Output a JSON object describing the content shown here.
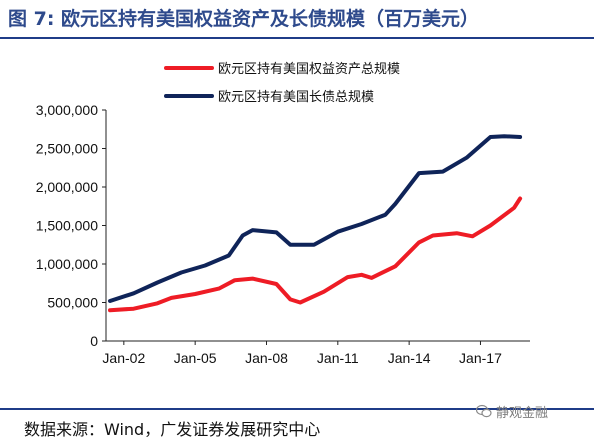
{
  "title": "图 7: 欧元区持有美国权益资产及长债规模（百万美元）",
  "source": "数据来源：Wind，广发证券发展研究中心",
  "watermark": "静观金融",
  "chart_data": {
    "type": "line",
    "title": "图 7: 欧元区持有美国权益资产及长债规模（百万美元）",
    "xlabel": "",
    "ylabel": "",
    "ylim": [
      0,
      3000000
    ],
    "yticks": [
      0,
      500000,
      1000000,
      1500000,
      2000000,
      2500000,
      3000000
    ],
    "ytick_labels": [
      "0",
      "500,000",
      "1,000,000",
      "1,500,000",
      "2,000,000",
      "2,500,000",
      "3,000,000"
    ],
    "xlim": [
      "2001-04",
      "2019-02"
    ],
    "xticks": [
      "2002-01",
      "2005-01",
      "2008-01",
      "2011-01",
      "2014-01",
      "2017-01"
    ],
    "xtick_labels": [
      "Jan-02",
      "Jan-05",
      "Jan-08",
      "Jan-11",
      "Jan-14",
      "Jan-17"
    ],
    "grid": false,
    "legend_position": "top-left",
    "series": [
      {
        "name": "欧元区持有美国权益资产总规模",
        "color": "#ee1c25",
        "points": [
          [
            "2001-06",
            400000
          ],
          [
            "2002-06",
            420000
          ],
          [
            "2003-06",
            490000
          ],
          [
            "2004-01",
            560000
          ],
          [
            "2005-01",
            610000
          ],
          [
            "2006-01",
            680000
          ],
          [
            "2006-09",
            790000
          ],
          [
            "2007-06",
            810000
          ],
          [
            "2008-06",
            740000
          ],
          [
            "2009-01",
            540000
          ],
          [
            "2009-06",
            500000
          ],
          [
            "2010-06",
            640000
          ],
          [
            "2011-06",
            830000
          ],
          [
            "2012-01",
            860000
          ],
          [
            "2012-06",
            820000
          ],
          [
            "2013-06",
            970000
          ],
          [
            "2014-06",
            1280000
          ],
          [
            "2015-01",
            1370000
          ],
          [
            "2016-01",
            1400000
          ],
          [
            "2016-09",
            1360000
          ],
          [
            "2017-06",
            1500000
          ],
          [
            "2018-06",
            1730000
          ],
          [
            "2018-09",
            1850000
          ]
        ]
      },
      {
        "name": "欧元区持有美国长债总规模",
        "color": "#0f2459",
        "points": [
          [
            "2001-06",
            520000
          ],
          [
            "2002-06",
            620000
          ],
          [
            "2003-06",
            760000
          ],
          [
            "2004-06",
            890000
          ],
          [
            "2005-06",
            980000
          ],
          [
            "2006-06",
            1110000
          ],
          [
            "2007-01",
            1370000
          ],
          [
            "2007-06",
            1440000
          ],
          [
            "2008-06",
            1410000
          ],
          [
            "2009-01",
            1250000
          ],
          [
            "2010-01",
            1250000
          ],
          [
            "2011-01",
            1420000
          ],
          [
            "2012-01",
            1520000
          ],
          [
            "2013-01",
            1640000
          ],
          [
            "2013-06",
            1780000
          ],
          [
            "2014-06",
            2180000
          ],
          [
            "2015-06",
            2200000
          ],
          [
            "2016-06",
            2380000
          ],
          [
            "2017-06",
            2650000
          ],
          [
            "2018-01",
            2660000
          ],
          [
            "2018-09",
            2650000
          ]
        ]
      }
    ]
  }
}
